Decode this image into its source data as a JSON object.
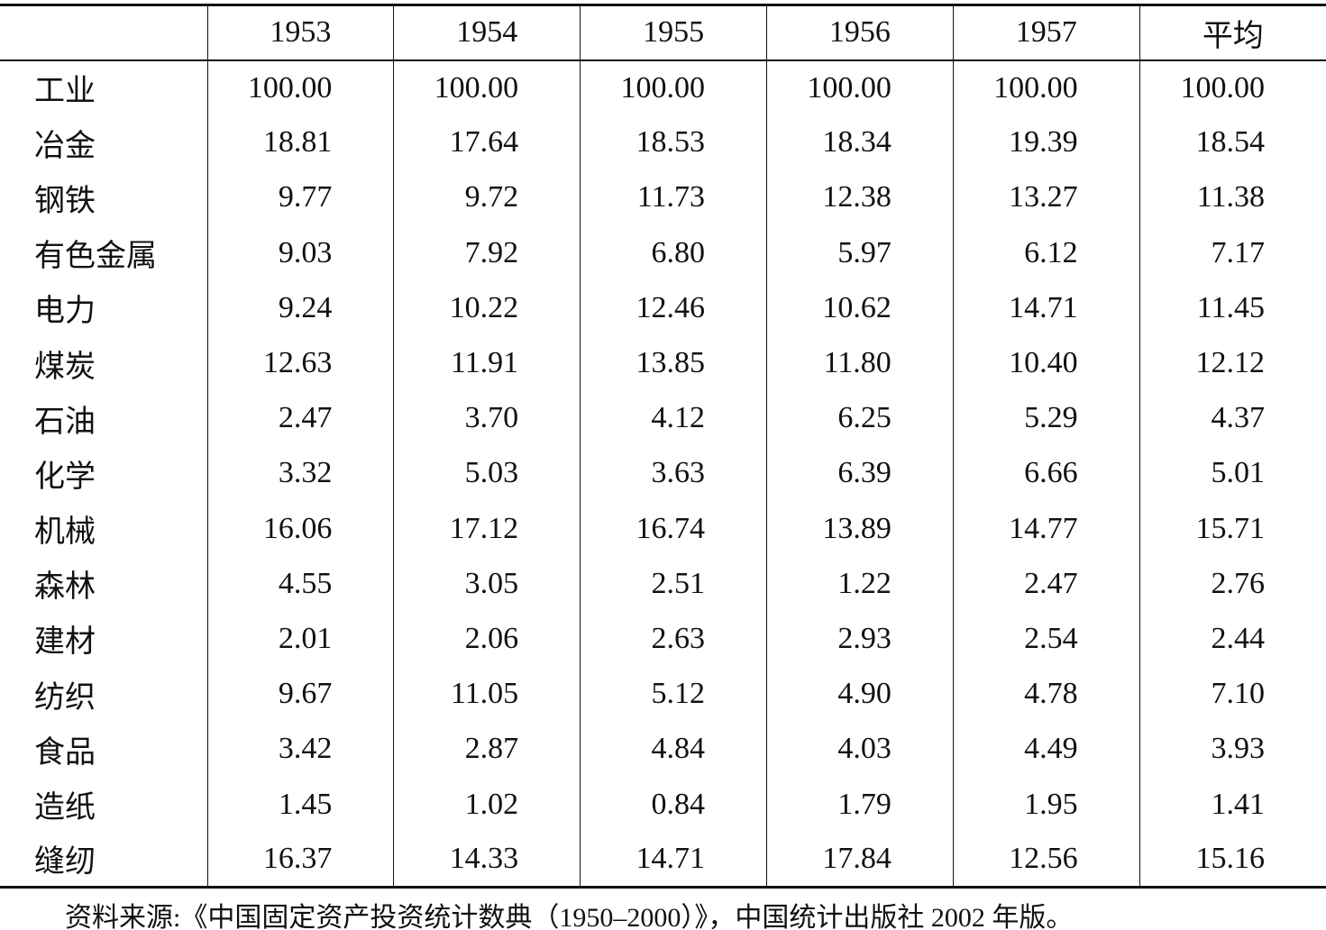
{
  "table": {
    "header": [
      "",
      "1953",
      "1954",
      "1955",
      "1956",
      "1957",
      "平均"
    ],
    "rows": [
      [
        "工业",
        "100.00",
        "100.00",
        "100.00",
        "100.00",
        "100.00",
        "100.00"
      ],
      [
        "冶金",
        "18.81",
        "17.64",
        "18.53",
        "18.34",
        "19.39",
        "18.54"
      ],
      [
        "钢铁",
        "9.77",
        "9.72",
        "11.73",
        "12.38",
        "13.27",
        "11.38"
      ],
      [
        "有色金属",
        "9.03",
        "7.92",
        "6.80",
        "5.97",
        "6.12",
        "7.17"
      ],
      [
        "电力",
        "9.24",
        "10.22",
        "12.46",
        "10.62",
        "14.71",
        "11.45"
      ],
      [
        "煤炭",
        "12.63",
        "11.91",
        "13.85",
        "11.80",
        "10.40",
        "12.12"
      ],
      [
        "石油",
        "2.47",
        "3.70",
        "4.12",
        "6.25",
        "5.29",
        "4.37"
      ],
      [
        "化学",
        "3.32",
        "5.03",
        "3.63",
        "6.39",
        "6.66",
        "5.01"
      ],
      [
        "机械",
        "16.06",
        "17.12",
        "16.74",
        "13.89",
        "14.77",
        "15.71"
      ],
      [
        "森林",
        "4.55",
        "3.05",
        "2.51",
        "1.22",
        "2.47",
        "2.76"
      ],
      [
        "建材",
        "2.01",
        "2.06",
        "2.63",
        "2.93",
        "2.54",
        "2.44"
      ],
      [
        "纺织",
        "9.67",
        "11.05",
        "5.12",
        "4.90",
        "4.78",
        "7.10"
      ],
      [
        "食品",
        "3.42",
        "2.87",
        "4.84",
        "4.03",
        "4.49",
        "3.93"
      ],
      [
        "造纸",
        "1.45",
        "1.02",
        "0.84",
        "1.79",
        "1.95",
        "1.41"
      ],
      [
        "缝纫",
        "16.37",
        "14.33",
        "14.71",
        "17.84",
        "12.56",
        "15.16"
      ]
    ]
  },
  "source": "资料来源:《中国固定资产投资统计数典（1950–2000）》，中国统计出版社 2002 年版。"
}
